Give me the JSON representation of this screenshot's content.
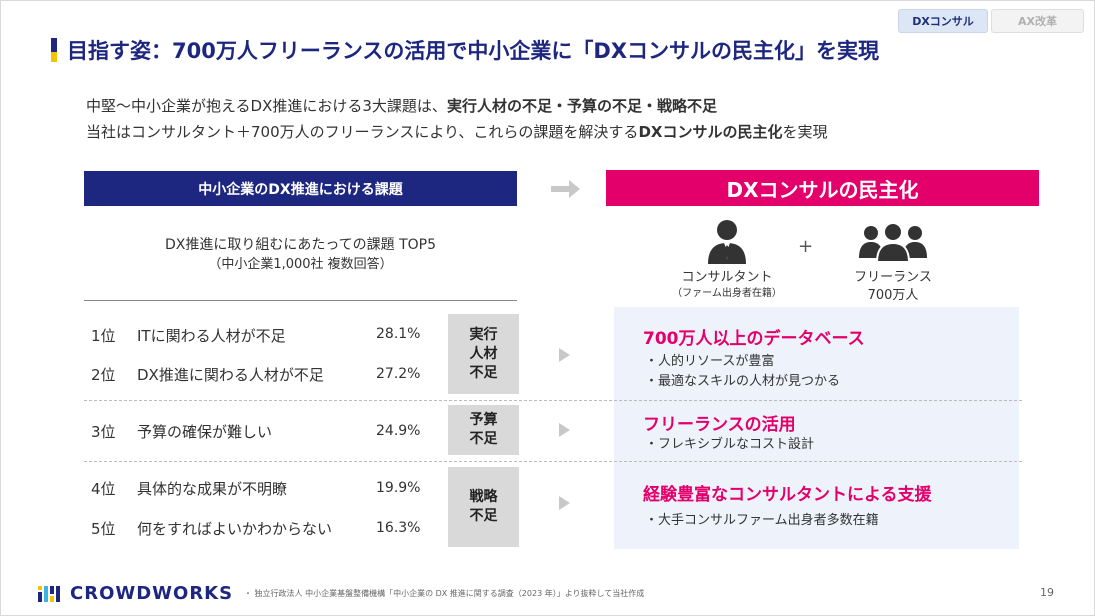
{
  "tabs": [
    {
      "label": "DXコンサル",
      "active": true
    },
    {
      "label": "AX改革",
      "active": false
    }
  ],
  "title": "目指す姿：700万人フリーランスの活用で中小企業に「DXコンサルの民主化」を実現",
  "lead": {
    "line1_a": "中堅〜中小企業が抱えるDX推進における3大課題は、",
    "line1_b": "実行人材の不足・予算の不足・戦略不足",
    "line2_a": "当社はコンサルタント＋700万人のフリーランスにより、これらの課題を解決する",
    "line2_b": "DXコンサルの民主化",
    "line2_c": "を実現"
  },
  "left_header": "中小企業のDX推進における課題",
  "right_header": "DXコンサルの民主化",
  "survey": {
    "title": "DX推進に取り組むにあたっての課題 TOP5",
    "subtitle": "（中小企業1,000社 複数回答）"
  },
  "issues": [
    {
      "rank": "1位",
      "text": "ITに関わる人材が不足",
      "pct": "28.1%"
    },
    {
      "rank": "2位",
      "text": "DX推進に関わる人材が不足",
      "pct": "27.2%"
    },
    {
      "rank": "3位",
      "text": "予算の確保が難しい",
      "pct": "24.9%"
    },
    {
      "rank": "4位",
      "text": "具体的な成果が不明瞭",
      "pct": "19.9%"
    },
    {
      "rank": "5位",
      "text": "何をすればよいかわからない",
      "pct": "16.3%"
    }
  ],
  "categories": [
    {
      "line1": "実行",
      "line2": "人材",
      "line3": "不足"
    },
    {
      "line1": "予算",
      "line2": "不足"
    },
    {
      "line1": "戦略",
      "line2": "不足"
    }
  ],
  "people": {
    "consultant_label": "コンサルタント",
    "consultant_sub": "（ファーム出身者在籍）",
    "plus": "+",
    "freelance_label": "フリーランス",
    "freelance_sub": "700万人"
  },
  "solutions": [
    {
      "heading": "700万人以上のデータベース",
      "bullets": [
        "・人的リソースが豊富",
        "・最適なスキルの人材が見つかる"
      ]
    },
    {
      "heading": "フリーランスの活用",
      "bullets": [
        "・フレキシブルなコスト設計"
      ]
    },
    {
      "heading": "経験豊富なコンサルタントによる支援",
      "bullets": [
        "・大手コンサルファーム出身者多数在籍"
      ]
    }
  ],
  "footer": {
    "logo": "CROWDWORKS",
    "note": "・ 独立行政法人 中小企業基盤整備機構「中小企業の DX 推進に関する調査（2023 年）」より抜粋して当社作成",
    "page": "19"
  },
  "colors": {
    "navy": "#1e2780",
    "magenta": "#e4006a",
    "yellow": "#f2c300"
  }
}
